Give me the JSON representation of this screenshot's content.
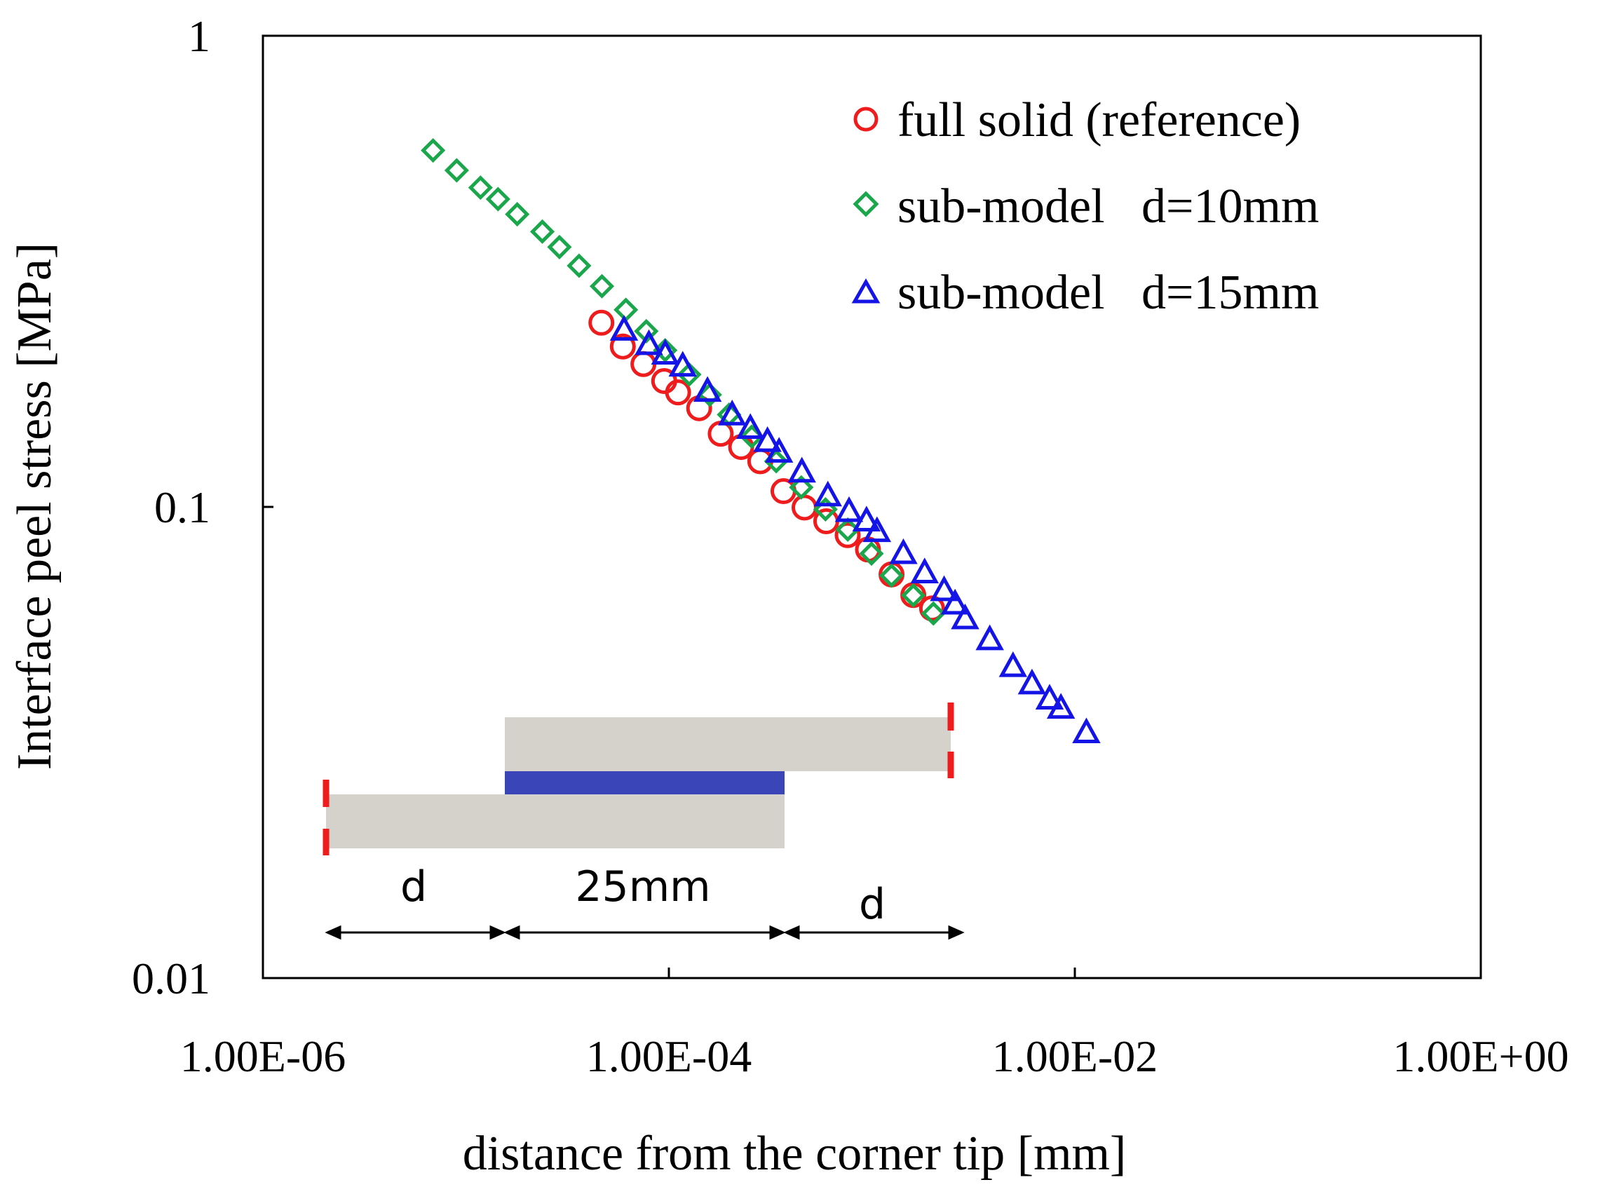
{
  "chart_data": {
    "type": "scatter",
    "title": "",
    "xlabel": "distance from the corner tip [mm]",
    "ylabel": "Interface peel stress [MPa]",
    "x_scale": "log",
    "y_scale": "log",
    "xlim": [
      1e-06,
      1
    ],
    "ylim": [
      0.01,
      1
    ],
    "x_ticks": [
      {
        "value": 1e-06,
        "label": "1.00E-06"
      },
      {
        "value": 0.0001,
        "label": "1.00E-04"
      },
      {
        "value": 0.01,
        "label": "1.00E-02"
      },
      {
        "value": 1,
        "label": "1.00E+00"
      }
    ],
    "y_ticks": [
      {
        "value": 1,
        "label": "1"
      },
      {
        "value": 0.1,
        "label": "0.1"
      },
      {
        "value": 0.01,
        "label": "0.01"
      }
    ],
    "legend_position": "top-right",
    "series": [
      {
        "name": "full solid (reference)",
        "marker": "circle",
        "color": "#ee1c1c",
        "points": [
          [
            4.65e-05,
            0.246
          ],
          [
            5.93e-05,
            0.219
          ],
          [
            7.49e-05,
            0.201
          ],
          [
            9.48e-05,
            0.185
          ],
          [
            0.000111,
            0.175
          ],
          [
            0.000141,
            0.162
          ],
          [
            0.00018,
            0.143
          ],
          [
            0.000227,
            0.134
          ],
          [
            0.000282,
            0.125
          ],
          [
            0.000367,
            0.108
          ],
          [
            0.000466,
            0.0997
          ],
          [
            0.000596,
            0.0932
          ],
          [
            0.00076,
            0.0871
          ],
          [
            0.000957,
            0.0812
          ],
          [
            0.00125,
            0.0719
          ],
          [
            0.0016,
            0.065
          ],
          [
            0.00198,
            0.0609
          ]
        ]
      },
      {
        "name": "sub-model   d=10mm",
        "marker": "diamond",
        "color": "#1aa64b",
        "points": [
          [
            6.89e-06,
            0.571
          ],
          [
            9.01e-06,
            0.518
          ],
          [
            1.18e-05,
            0.476
          ],
          [
            1.44e-05,
            0.45
          ],
          [
            1.79e-05,
            0.418
          ],
          [
            2.38e-05,
            0.384
          ],
          [
            2.89e-05,
            0.356
          ],
          [
            3.61e-05,
            0.325
          ],
          [
            4.68e-05,
            0.294
          ],
          [
            6.14e-05,
            0.262
          ],
          [
            7.74e-05,
            0.236
          ],
          [
            9.59e-05,
            0.215
          ],
          [
            0.000126,
            0.191
          ],
          [
            0.000159,
            0.173
          ],
          [
            0.000198,
            0.157
          ],
          [
            0.000256,
            0.141
          ],
          [
            0.000338,
            0.125
          ],
          [
            0.000449,
            0.11
          ],
          [
            0.000591,
            0.0988
          ],
          [
            0.000761,
            0.0895
          ],
          [
            0.000996,
            0.0796
          ],
          [
            0.00125,
            0.0715
          ],
          [
            0.0016,
            0.0649
          ],
          [
            0.00201,
            0.0594
          ]
        ]
      },
      {
        "name": "sub-model   d=15mm",
        "marker": "triangle",
        "color": "#1414e6",
        "points": [
          [
            6.01e-05,
            0.236
          ],
          [
            7.97e-05,
            0.22
          ],
          [
            9.6e-05,
            0.21
          ],
          [
            0.000117,
            0.198
          ],
          [
            0.000155,
            0.175
          ],
          [
            0.000205,
            0.156
          ],
          [
            0.000252,
            0.146
          ],
          [
            0.000306,
            0.137
          ],
          [
            0.000349,
            0.13
          ],
          [
            0.000452,
            0.118
          ],
          [
            0.000607,
            0.105
          ],
          [
            0.000772,
            0.0973
          ],
          [
            0.000941,
            0.0929
          ],
          [
            0.00106,
            0.0882
          ],
          [
            0.00143,
            0.0792
          ],
          [
            0.00182,
            0.0721
          ],
          [
            0.00227,
            0.0661
          ],
          [
            0.00257,
            0.0619
          ],
          [
            0.00288,
            0.0576
          ],
          [
            0.00381,
            0.052
          ],
          [
            0.00496,
            0.0456
          ],
          [
            0.00615,
            0.0419
          ],
          [
            0.00751,
            0.0389
          ],
          [
            0.00854,
            0.0372
          ],
          [
            0.0114,
            0.033
          ]
        ]
      }
    ]
  },
  "inset": {
    "dim_left": "d",
    "dim_middle": "25mm",
    "dim_right": "d",
    "colors": {
      "plate": "#d4d2cb",
      "adhesive": "#3a46b8",
      "cut": "#ee1c1c",
      "arrow": "#000000"
    }
  }
}
